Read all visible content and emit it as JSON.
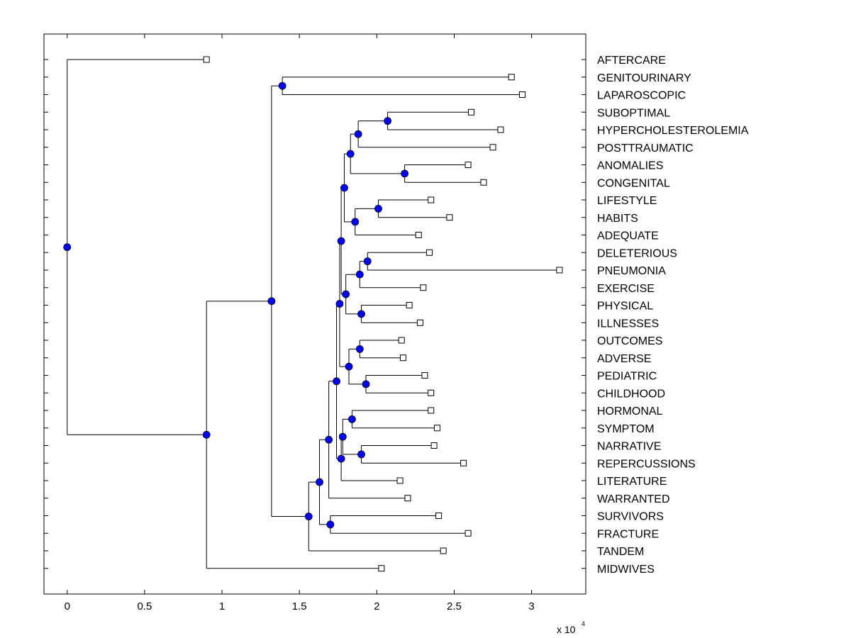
{
  "chart_data": {
    "type": "dendrogram",
    "title": "",
    "xlabel": "",
    "ylabel": "",
    "x_scale_label": "x 10",
    "x_scale_exponent": "4",
    "xlim": [
      -0.15,
      3.35
    ],
    "xticks": [
      0,
      0.5,
      1,
      1.5,
      2,
      2.5,
      3
    ],
    "xtick_labels": [
      "0",
      "0.5",
      "1",
      "1.5",
      "2",
      "2.5",
      "3"
    ],
    "colors": {
      "node": "#0000ff",
      "line": "#000000",
      "leaf_fill": "#ffffff"
    },
    "leaves": [
      {
        "label": "AFTERCARE",
        "x": 0.9
      },
      {
        "label": "GENITOURINARY",
        "x": 2.87
      },
      {
        "label": "LAPAROSCOPIC",
        "x": 2.94
      },
      {
        "label": "SUBOPTIMAL",
        "x": 2.61
      },
      {
        "label": "HYPERCHOLESTEROLEMIA",
        "x": 2.8
      },
      {
        "label": "POSTTRAUMATIC",
        "x": 2.75
      },
      {
        "label": "ANOMALIES",
        "x": 2.59
      },
      {
        "label": "CONGENITAL",
        "x": 2.69
      },
      {
        "label": "LIFESTYLE",
        "x": 2.35
      },
      {
        "label": "HABITS",
        "x": 2.47
      },
      {
        "label": "ADEQUATE",
        "x": 2.27
      },
      {
        "label": "DELETERIOUS",
        "x": 2.34
      },
      {
        "label": "PNEUMONIA",
        "x": 3.18
      },
      {
        "label": "EXERCISE",
        "x": 2.3
      },
      {
        "label": "PHYSICAL",
        "x": 2.21
      },
      {
        "label": "ILLNESSES",
        "x": 2.28
      },
      {
        "label": "OUTCOMES",
        "x": 2.16
      },
      {
        "label": "ADVERSE",
        "x": 2.17
      },
      {
        "label": "PEDIATRIC",
        "x": 2.31
      },
      {
        "label": "CHILDHOOD",
        "x": 2.35
      },
      {
        "label": "HORMONAL",
        "x": 2.35
      },
      {
        "label": "SYMPTOM",
        "x": 2.39
      },
      {
        "label": "NARRATIVE",
        "x": 2.37
      },
      {
        "label": "REPERCUSSIONS",
        "x": 2.56
      },
      {
        "label": "LITERATURE",
        "x": 2.15
      },
      {
        "label": "WARRANTED",
        "x": 2.2
      },
      {
        "label": "SURVIVORS",
        "x": 2.4
      },
      {
        "label": "FRACTURE",
        "x": 2.59
      },
      {
        "label": "TANDEM",
        "x": 2.43
      },
      {
        "label": "MIDWIVES",
        "x": 2.03
      }
    ],
    "nodes": [
      {
        "id": "n1",
        "x": 1.39,
        "children": [
          1,
          2
        ]
      },
      {
        "id": "n2",
        "x": 2.07,
        "children": [
          3,
          4
        ]
      },
      {
        "id": "n3",
        "x": 1.88,
        "children": [
          "n2",
          5
        ]
      },
      {
        "id": "n4",
        "x": 2.18,
        "children": [
          6,
          7
        ]
      },
      {
        "id": "n5",
        "x": 1.83,
        "children": [
          "n3",
          "n4"
        ]
      },
      {
        "id": "n6",
        "x": 2.01,
        "children": [
          8,
          9
        ]
      },
      {
        "id": "n7",
        "x": 1.86,
        "children": [
          "n6",
          10
        ]
      },
      {
        "id": "n8",
        "x": 1.79,
        "children": [
          "n5",
          "n7"
        ]
      },
      {
        "id": "n9",
        "x": 1.94,
        "children": [
          11,
          12
        ]
      },
      {
        "id": "n10",
        "x": 1.89,
        "children": [
          "n9",
          13
        ]
      },
      {
        "id": "n11",
        "x": 1.9,
        "children": [
          14,
          15
        ]
      },
      {
        "id": "n12",
        "x": 1.8,
        "children": [
          "n10",
          "n11"
        ]
      },
      {
        "id": "n13",
        "x": 1.77,
        "children": [
          "n8",
          "n12"
        ]
      },
      {
        "id": "n14",
        "x": 1.89,
        "children": [
          16,
          17
        ]
      },
      {
        "id": "n15",
        "x": 1.93,
        "children": [
          18,
          19
        ]
      },
      {
        "id": "n16",
        "x": 1.82,
        "children": [
          "n14",
          "n15"
        ]
      },
      {
        "id": "n17",
        "x": 1.76,
        "children": [
          "n13",
          "n16"
        ]
      },
      {
        "id": "n18",
        "x": 1.84,
        "children": [
          20,
          21
        ]
      },
      {
        "id": "n19",
        "x": 1.9,
        "children": [
          22,
          23
        ]
      },
      {
        "id": "n20",
        "x": 1.78,
        "children": [
          "n18",
          "n19"
        ]
      },
      {
        "id": "n21",
        "x": 1.77,
        "children": [
          "n20",
          24
        ]
      },
      {
        "id": "n22",
        "x": 1.74,
        "children": [
          "n17",
          "n21"
        ]
      },
      {
        "id": "n23",
        "x": 1.69,
        "children": [
          "n22",
          25
        ]
      },
      {
        "id": "n24",
        "x": 1.7,
        "children": [
          26,
          27
        ]
      },
      {
        "id": "n25",
        "x": 1.63,
        "children": [
          "n23",
          "n24"
        ]
      },
      {
        "id": "n26",
        "x": 1.56,
        "children": [
          "n25",
          28
        ]
      },
      {
        "id": "n27",
        "x": 1.32,
        "children": [
          "n1",
          "n26"
        ]
      },
      {
        "id": "n28",
        "x": 0.9,
        "children": [
          "n27",
          29
        ]
      },
      {
        "id": "n29",
        "x": 0.0,
        "children": [
          0,
          "n28"
        ]
      }
    ]
  }
}
